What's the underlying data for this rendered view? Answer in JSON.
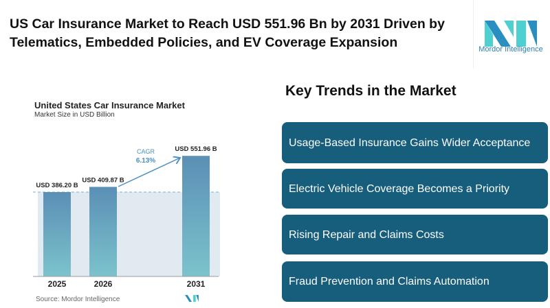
{
  "headline": "US Car Insurance Market to Reach USD 551.96 Bn by 2031 Driven by Telematics, Embedded Policies, and EV Coverage Expansion",
  "brand": {
    "name": "Mordor Intelligence",
    "colors": [
      "#2a8fc0",
      "#4fd0d0"
    ]
  },
  "chart_data": {
    "type": "bar",
    "title": "United States Car Insurance Market",
    "subtitle": "Market Size in USD Billion",
    "categories": [
      "2025",
      "2026",
      "2031"
    ],
    "values": [
      386.2,
      409.87,
      551.96
    ],
    "data_labels": [
      "USD 386.20 B",
      "USD 409.87 B",
      "USD 551.96 B"
    ],
    "annotation": {
      "label": "CAGR",
      "value": "6.13%"
    },
    "source": "Source:  Mordor Intelligence",
    "colors": {
      "bar_top": "#5b8fb5",
      "bar_bottom": "#7cc3cc",
      "band": "#e1eaf1",
      "annotation": "#4a90c0"
    }
  },
  "trends": {
    "title": "Key Trends in the Market",
    "items": [
      "Usage-Based Insurance Gains Wider Acceptance",
      "Electric Vehicle Coverage Becomes a Priority",
      "Rising Repair and Claims Costs",
      "Fraud Prevention and Claims Automation"
    ],
    "color": "#165e7b"
  }
}
